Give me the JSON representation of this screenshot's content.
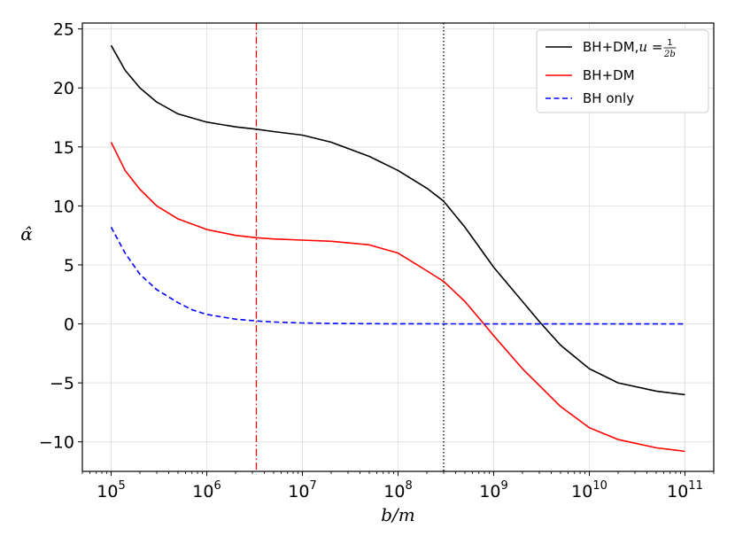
{
  "chart_data": {
    "type": "line",
    "xscale": "log",
    "xlabel": "b/m",
    "ylabel": "α̂",
    "xlim": [
      50000,
      200000000000
    ],
    "ylim": [
      -12.5,
      25.5
    ],
    "grid": true,
    "legend_position": "top-right",
    "x_ticks": [
      100000,
      1000000,
      10000000,
      100000000,
      1000000000,
      10000000000,
      100000000000
    ],
    "x_tick_labels": [
      {
        "base": "10",
        "exp": "5"
      },
      {
        "base": "10",
        "exp": "6"
      },
      {
        "base": "10",
        "exp": "7"
      },
      {
        "base": "10",
        "exp": "8"
      },
      {
        "base": "10",
        "exp": "9"
      },
      {
        "base": "10",
        "exp": "10"
      },
      {
        "base": "10",
        "exp": "11"
      }
    ],
    "y_ticks": [
      -10,
      -5,
      0,
      5,
      10,
      15,
      20,
      25
    ],
    "y_tick_labels": [
      "−10",
      "−5",
      "0",
      "5",
      "10",
      "15",
      "20",
      "25"
    ],
    "vertical_lines": [
      {
        "x": 3300000,
        "color": "#ff0000",
        "style": "dashdot"
      },
      {
        "x": 300000000,
        "color": "#000000",
        "style": "dotted"
      }
    ],
    "series": [
      {
        "legend_label": {
          "text": "BH+DM,",
          "var": "u",
          "eq": " = ",
          "num": "1",
          "den": "2b"
        },
        "color": "#000000",
        "style": "solid",
        "x": [
          100000,
          140000,
          200000,
          300000,
          500000,
          1000000,
          2000000,
          3300000,
          5000000,
          10000000,
          20000000,
          50000000,
          100000000,
          200000000,
          300000000,
          500000000,
          1000000000,
          2000000000,
          3000000000,
          5000000000,
          10000000000,
          20000000000,
          50000000000,
          100000000000
        ],
        "y": [
          23.6,
          21.5,
          20.0,
          18.8,
          17.8,
          17.1,
          16.7,
          16.5,
          16.3,
          16.0,
          15.4,
          14.2,
          13.0,
          11.5,
          10.4,
          8.2,
          4.8,
          1.9,
          0.2,
          -1.8,
          -3.8,
          -5.0,
          -5.7,
          -6.0
        ]
      },
      {
        "legend_label": {
          "text": "BH+DM"
        },
        "color": "#ff0000",
        "style": "solid",
        "x": [
          100000,
          140000,
          200000,
          300000,
          500000,
          1000000,
          2000000,
          3300000,
          5000000,
          10000000,
          20000000,
          50000000,
          100000000,
          200000000,
          300000000,
          500000000,
          700000000,
          1000000000,
          2000000000,
          5000000000,
          10000000000,
          20000000000,
          50000000000,
          100000000000
        ],
        "y": [
          15.4,
          13.0,
          11.4,
          10.0,
          8.9,
          8.0,
          7.5,
          7.3,
          7.2,
          7.1,
          7.0,
          6.7,
          6.0,
          4.5,
          3.6,
          1.9,
          0.5,
          -1.0,
          -3.8,
          -7.0,
          -8.8,
          -9.8,
          -10.5,
          -10.8
        ]
      },
      {
        "legend_label": {
          "text": "BH only"
        },
        "color": "#0000ff",
        "style": "dashed",
        "x": [
          100000,
          140000,
          200000,
          300000,
          500000,
          700000,
          1000000,
          2000000,
          3300000,
          5000000,
          10000000,
          20000000,
          50000000,
          100000000,
          1000000000,
          10000000000,
          100000000000
        ],
        "y": [
          8.2,
          6.0,
          4.2,
          2.9,
          1.8,
          1.2,
          0.8,
          0.4,
          0.25,
          0.16,
          0.08,
          0.04,
          0.016,
          0.008,
          0.0,
          0.0,
          0.0
        ]
      }
    ]
  }
}
